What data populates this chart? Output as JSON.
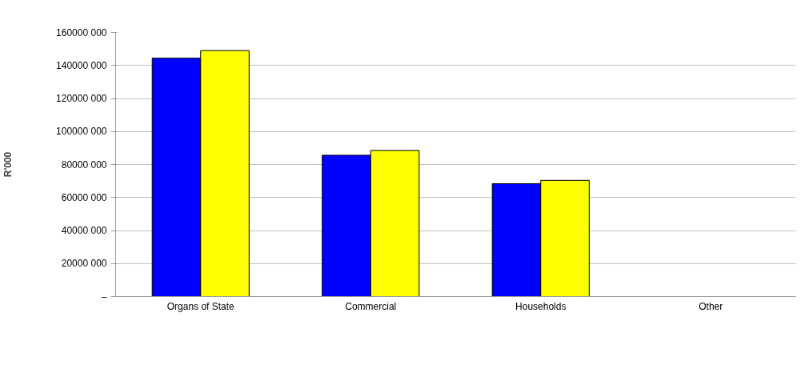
{
  "chart_data": {
    "type": "bar",
    "ylabel": "R'000",
    "categories": [
      "Organs of State",
      "Commercial",
      "Households",
      "Other"
    ],
    "series": [
      {
        "color": "#0000ff",
        "values": [
          144400000,
          85600000,
          68400000,
          null
        ]
      },
      {
        "color": "#ffff00",
        "values": [
          149000000,
          88500000,
          70400000,
          null
        ]
      }
    ],
    "ylim": [
      0,
      160000000
    ],
    "yticks": [
      {
        "value": 0,
        "label": "–"
      },
      {
        "value": 20000000,
        "label": "20000 000"
      },
      {
        "value": 40000000,
        "label": "40000 000"
      },
      {
        "value": 60000000,
        "label": "60000 000"
      },
      {
        "value": 80000000,
        "label": "80000 000"
      },
      {
        "value": 100000000,
        "label": "100000 000"
      },
      {
        "value": 120000000,
        "label": "120000 000"
      },
      {
        "value": 140000000,
        "label": "140000 000"
      },
      {
        "value": 160000000,
        "label": "160000 000"
      }
    ],
    "grid": "y"
  }
}
